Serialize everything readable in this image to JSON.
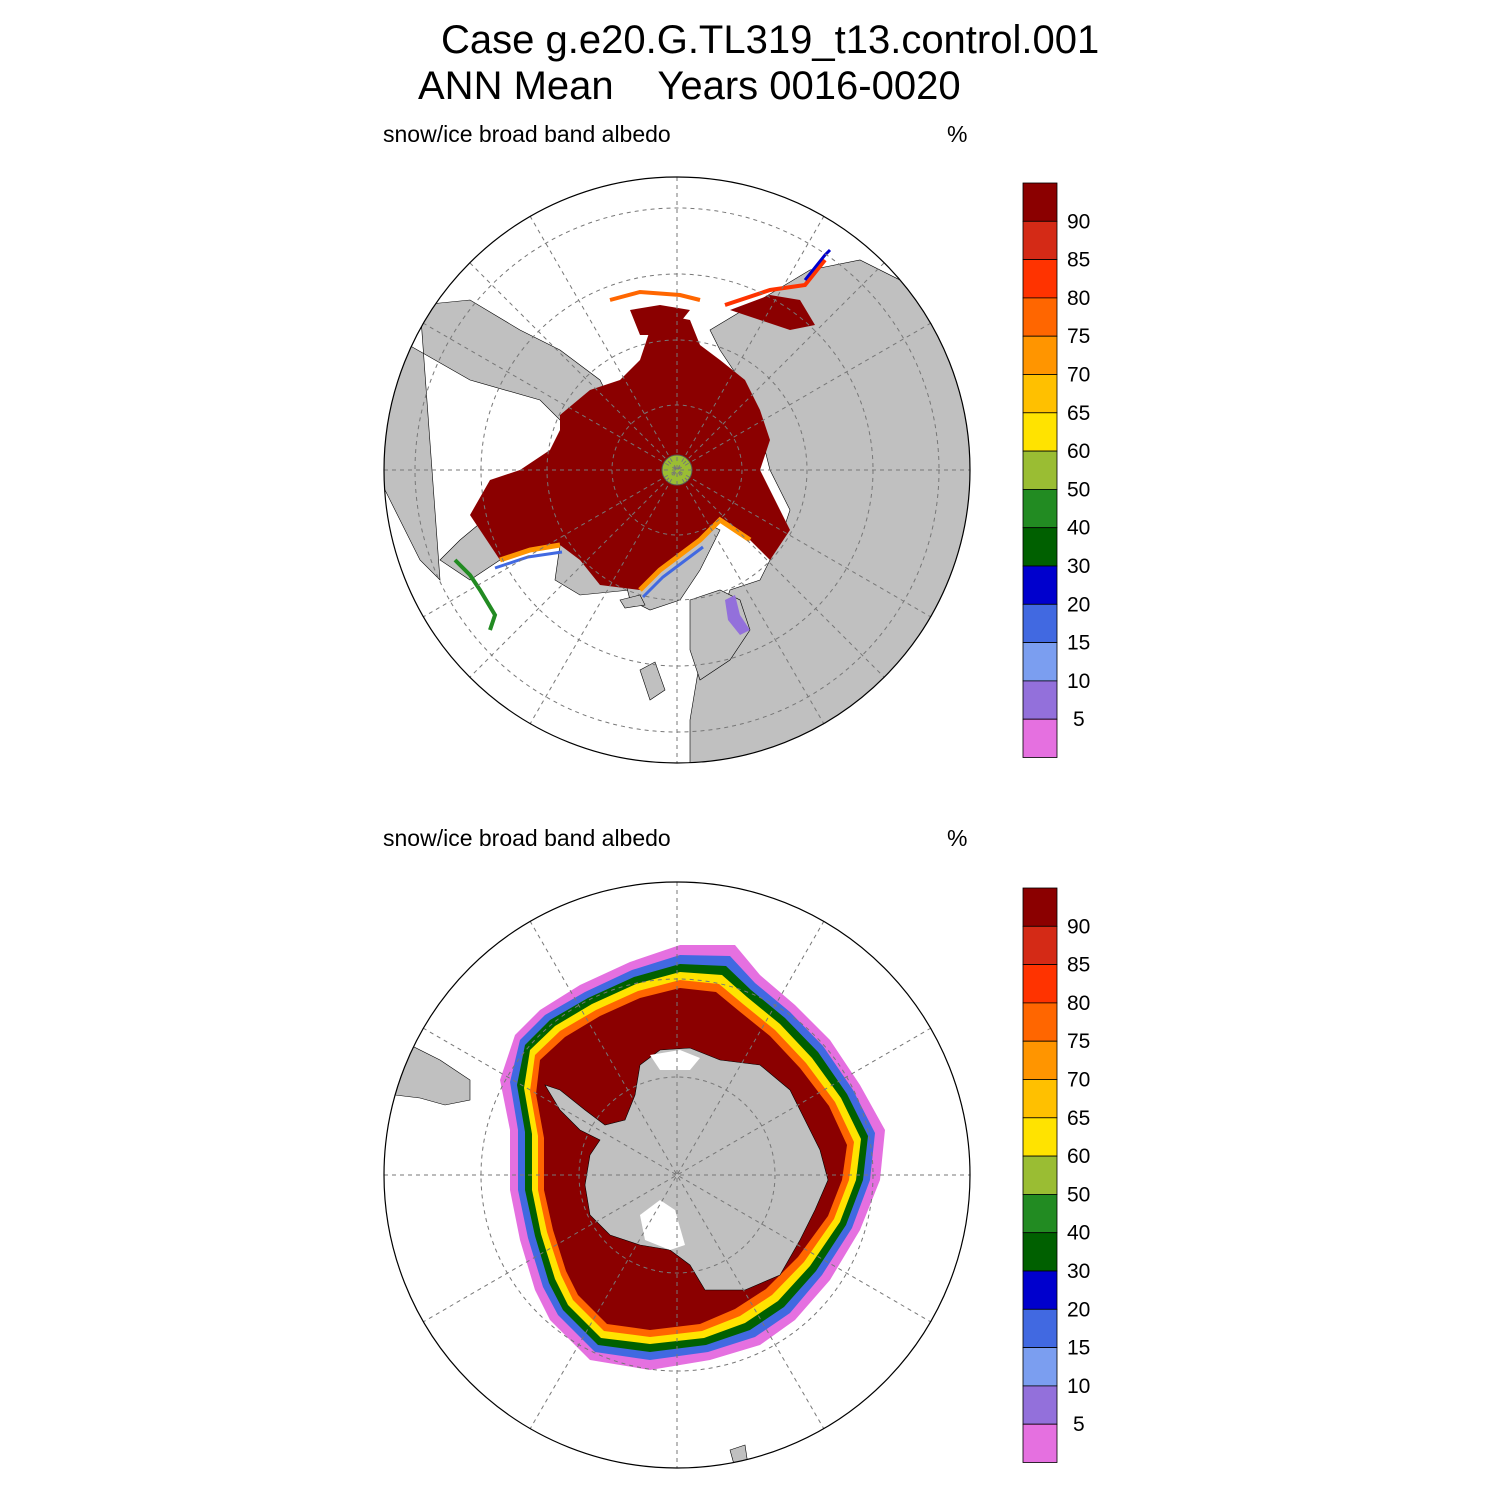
{
  "title": {
    "line1": "Case g.e20.G.TL319_t13.control.001",
    "line2": "ANN Mean    Years 0016-0020"
  },
  "panels": [
    {
      "id": "arctic",
      "hemisphere": "north",
      "variable_label": "snow/ice broad band albedo",
      "units": "%"
    },
    {
      "id": "antarctic",
      "hemisphere": "south",
      "variable_label": "snow/ice broad band albedo",
      "units": "%"
    }
  ],
  "colorbar": {
    "labels": [
      "90",
      "85",
      "80",
      "75",
      "70",
      "65",
      "60",
      "50",
      "40",
      "30",
      "20",
      "15",
      "10",
      "5"
    ],
    "colors": [
      "#8b0000",
      "#d42a16",
      "#ff3300",
      "#ff6600",
      "#ff9500",
      "#ffc000",
      "#ffe300",
      "#9abd33",
      "#228b22",
      "#006000",
      "#0000cd",
      "#4169e1",
      "#7b9ef0",
      "#9370db",
      "#e570e0"
    ]
  },
  "colors": {
    "land": "#c0c0c0",
    "ocean": "#ffffff",
    "grid": "#777777"
  }
}
